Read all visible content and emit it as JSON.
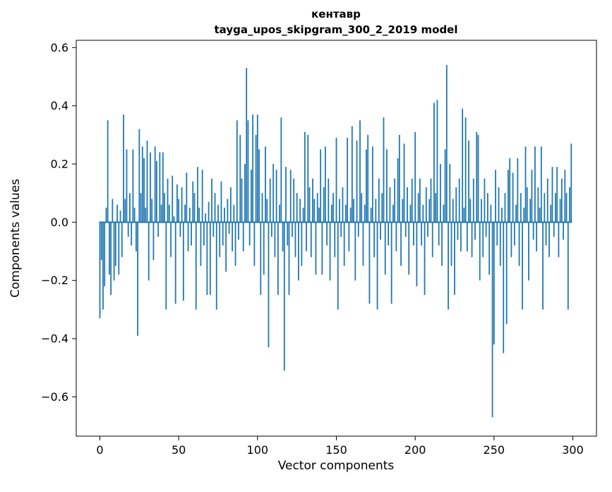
{
  "figure": {
    "background": "#ffffff",
    "bar_color": "#1f77b4",
    "spine_color": "#000000",
    "text_color": "#000000"
  },
  "chart_data": {
    "type": "bar",
    "title": "кентавр",
    "subtitle": "tayga_upos_skipgram_300_2_2019 model",
    "xlabel": "Vector components",
    "ylabel": "Components values",
    "xlim": [
      -15,
      315
    ],
    "ylim": [
      -0.735,
      0.625
    ],
    "xticks": [
      0,
      50,
      100,
      150,
      200,
      250,
      300
    ],
    "xtick_labels": [
      "0",
      "50",
      "100",
      "150",
      "200",
      "250",
      "300"
    ],
    "yticks": [
      -0.6,
      -0.4,
      -0.2,
      0.0,
      0.2,
      0.4,
      0.6
    ],
    "ytick_labels": [
      "−0.6",
      "−0.4",
      "−0.2",
      "0.0",
      "0.2",
      "0.4",
      "0.6"
    ],
    "bar_width_data_units": 0.8,
    "values": [
      -0.33,
      -0.13,
      -0.3,
      -0.22,
      0.05,
      0.35,
      -0.18,
      -0.25,
      0.08,
      -0.2,
      -0.15,
      0.06,
      -0.18,
      0.04,
      -0.12,
      0.37,
      0.08,
      0.25,
      -0.05,
      0.1,
      -0.08,
      0.25,
      0.05,
      -0.1,
      -0.39,
      0.32,
      0.1,
      0.26,
      0.22,
      0.05,
      0.28,
      -0.2,
      0.24,
      0.08,
      -0.13,
      0.26,
      0.21,
      -0.05,
      0.24,
      0.06,
      0.24,
      0.1,
      -0.3,
      0.15,
      0.06,
      -0.12,
      0.16,
      0.02,
      -0.28,
      0.13,
      0.08,
      -0.05,
      0.12,
      -0.27,
      0.06,
      0.17,
      -0.1,
      0.05,
      -0.08,
      0.14,
      0.1,
      -0.3,
      0.19,
      0.05,
      -0.15,
      0.18,
      -0.08,
      0.03,
      -0.25,
      0.07,
      -0.25,
      0.15,
      -0.05,
      0.1,
      -0.3,
      0.06,
      -0.12,
      0.14,
      -0.08,
      0.05,
      -0.17,
      0.08,
      -0.04,
      0.12,
      -0.1,
      0.06,
      -0.15,
      0.35,
      -0.06,
      0.3,
      0.15,
      -0.1,
      0.2,
      0.53,
      0.35,
      -0.08,
      0.18,
      0.37,
      -0.15,
      0.3,
      0.37,
      0.25,
      -0.25,
      0.1,
      -0.18,
      0.26,
      0.08,
      -0.43,
      0.15,
      -0.05,
      0.2,
      -0.12,
      0.18,
      -0.25,
      0.06,
      0.36,
      -0.1,
      -0.51,
      0.19,
      -0.08,
      -0.25,
      0.18,
      -0.05,
      0.15,
      -0.12,
      0.1,
      -0.2,
      0.08,
      -0.15,
      0.05,
      0.31,
      -0.1,
      0.3,
      0.12,
      -0.12,
      0.15,
      0.08,
      -0.18,
      0.1,
      0.05,
      0.25,
      -0.18,
      0.12,
      0.26,
      -0.08,
      0.15,
      -0.2,
      0.06,
      0.1,
      -0.12,
      0.29,
      -0.3,
      0.08,
      -0.05,
      0.12,
      -0.15,
      0.06,
      0.29,
      -0.1,
      0.05,
      0.33,
      0.08,
      -0.2,
      0.28,
      -0.05,
      0.35,
      0.1,
      -0.15,
      0.06,
      0.25,
      0.3,
      -0.28,
      0.05,
      0.26,
      -0.12,
      0.08,
      -0.3,
      0.15,
      -0.06,
      0.1,
      0.36,
      -0.18,
      0.25,
      -0.08,
      0.12,
      -0.28,
      0.06,
      0.15,
      -0.1,
      0.22,
      0.3,
      -0.15,
      0.08,
      0.27,
      -0.05,
      0.12,
      -0.18,
      0.06,
      0.15,
      -0.08,
      0.31,
      -0.22,
      0.1,
      0.15,
      -0.08,
      0.06,
      -0.25,
      0.12,
      -0.05,
      0.08,
      0.15,
      -0.12,
      0.41,
      0.1,
      0.42,
      -0.08,
      0.2,
      -0.15,
      0.06,
      0.25,
      0.54,
      -0.3,
      0.2,
      -0.15,
      0.08,
      -0.25,
      0.12,
      -0.06,
      0.15,
      -0.1,
      0.39,
      0.05,
      0.36,
      -0.1,
      0.28,
      0.08,
      -0.12,
      0.15,
      -0.06,
      0.31,
      0.3,
      -0.2,
      0.08,
      -0.12,
      0.15,
      -0.05,
      0.1,
      -0.18,
      0.06,
      -0.67,
      -0.42,
      0.18,
      -0.08,
      0.12,
      -0.15,
      0.05,
      -0.45,
      0.1,
      -0.35,
      0.18,
      0.22,
      -0.12,
      0.17,
      -0.08,
      0.06,
      0.22,
      -0.15,
      0.1,
      -0.3,
      0.05,
      0.26,
      0.12,
      -0.2,
      0.08,
      0.18,
      -0.06,
      0.26,
      -0.1,
      0.12,
      0.05,
      0.26,
      -0.3,
      0.1,
      -0.08,
      0.15,
      -0.12,
      0.06,
      0.19,
      -0.05,
      0.1,
      0.19,
      -0.12,
      0.08,
      0.15,
      -0.06,
      0.18,
      0.1,
      -0.3,
      0.12,
      0.27
    ]
  }
}
